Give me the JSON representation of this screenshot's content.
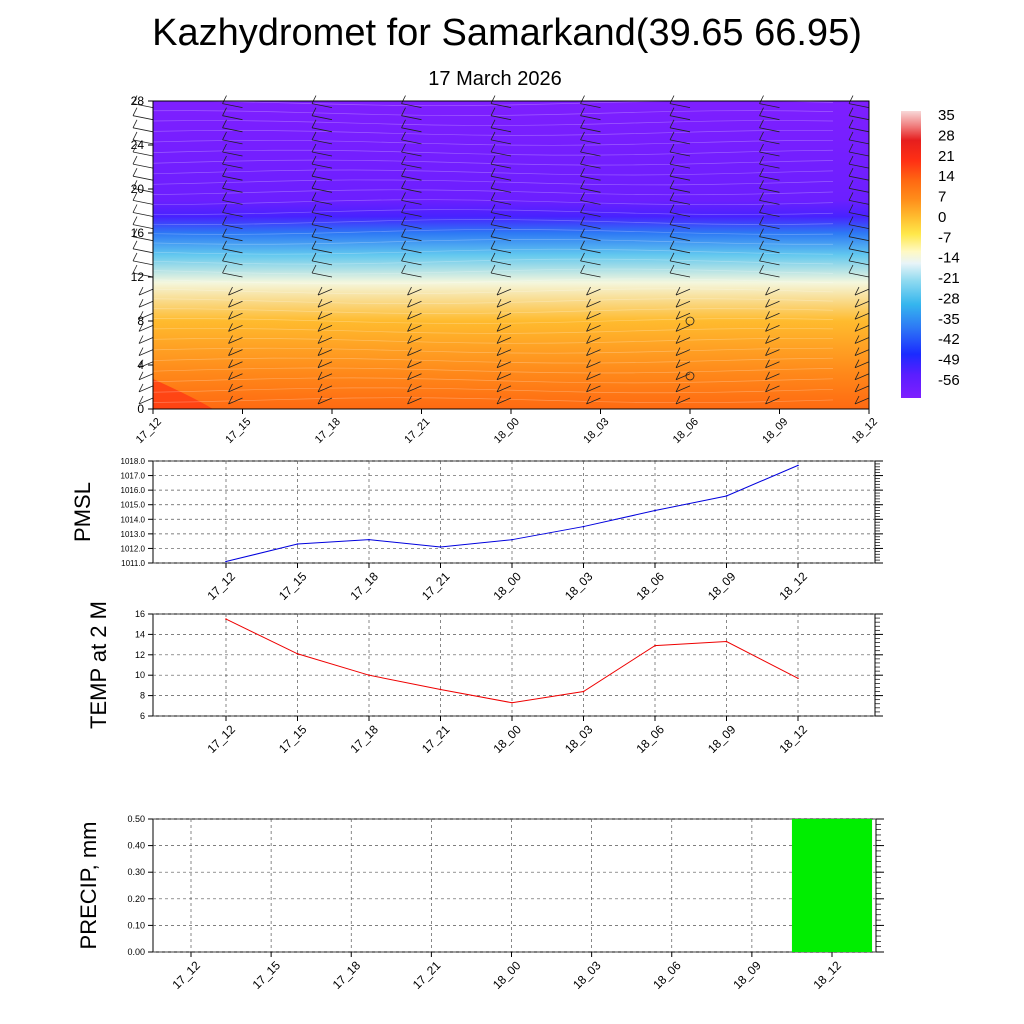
{
  "title": "Kazhydromet for Samarkand(39.65 66.95)",
  "subtitle": "17 March 2026",
  "colors": {
    "pmsl_line": "#0000dd",
    "temp_line": "#ee0000",
    "precip_bar": "#00ee00",
    "grid": "#555555"
  },
  "chart_data": [
    {
      "type": "heatmap",
      "name": "vertical temperature cross-section with wind barbs",
      "x_ticks": [
        "17_12",
        "17_15",
        "17_18",
        "17_21",
        "18_00",
        "18_03",
        "18_06",
        "18_09",
        "18_12"
      ],
      "y_ticks": [
        "0",
        "4",
        "8",
        "12",
        "16",
        "20",
        "24",
        "28"
      ],
      "ylim": [
        0,
        28
      ],
      "colorbar_labels": [
        "35",
        "28",
        "21",
        "14",
        "7",
        "0",
        "-7",
        "-14",
        "-21",
        "-28",
        "-35",
        "-42",
        "-49",
        "-56"
      ],
      "color_range": [
        -60,
        38
      ],
      "temperature_profile": [
        {
          "level": 0,
          "value": 14
        },
        {
          "level": 3,
          "value": 9
        },
        {
          "level": 8,
          "value": 2
        },
        {
          "level": 11.5,
          "value": -12
        },
        {
          "level": 14,
          "value": -24
        },
        {
          "level": 16,
          "value": -36
        },
        {
          "level": 17.5,
          "value": -50
        },
        {
          "level": 19,
          "value": -56
        },
        {
          "level": 28,
          "value": -60
        }
      ]
    },
    {
      "type": "line",
      "title": "",
      "ylabel": "PMSL",
      "categories": [
        "17_12",
        "17_15",
        "17_18",
        "17_21",
        "18_00",
        "18_03",
        "18_06",
        "18_09",
        "18_12"
      ],
      "values": [
        1011.1,
        1012.3,
        1012.6,
        1012.1,
        1012.6,
        1013.5,
        1014.6,
        1015.6,
        1017.7
      ],
      "ylim": [
        1011.0,
        1018.0
      ],
      "y_ticks": [
        "1011.0",
        "1012.0",
        "1013.0",
        "1014.0",
        "1015.0",
        "1016.0",
        "1017.0",
        "1018.0"
      ]
    },
    {
      "type": "line",
      "title": "",
      "ylabel": "TEMP at 2 M",
      "categories": [
        "17_12",
        "17_15",
        "17_18",
        "17_21",
        "18_00",
        "18_03",
        "18_06",
        "18_09",
        "18_12"
      ],
      "values": [
        15.5,
        12.1,
        10.0,
        8.6,
        7.3,
        8.4,
        12.9,
        13.3,
        9.7
      ],
      "ylim": [
        6,
        16
      ],
      "y_ticks": [
        "6",
        "8",
        "10",
        "12",
        "14",
        "16"
      ]
    },
    {
      "type": "bar",
      "title": "",
      "ylabel": "PRECIP, mm",
      "categories": [
        "17_12",
        "17_15",
        "17_18",
        "17_21",
        "18_00",
        "18_03",
        "18_06",
        "18_09",
        "18_12"
      ],
      "values": [
        0,
        0,
        0,
        0,
        0,
        0,
        0,
        0,
        0.5
      ],
      "ylim": [
        0,
        0.5
      ],
      "y_ticks": [
        "0.00",
        "0.10",
        "0.20",
        "0.30",
        "0.40",
        "0.50"
      ]
    }
  ]
}
